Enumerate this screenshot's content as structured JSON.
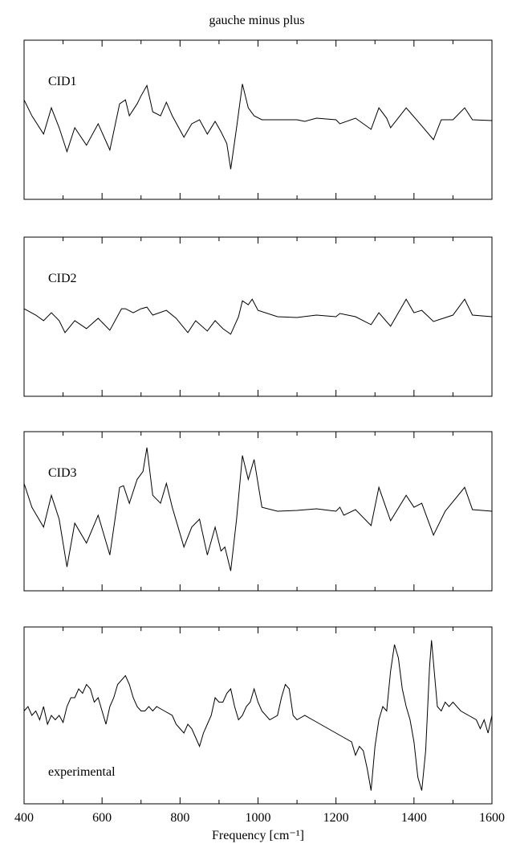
{
  "chart_data": [
    {
      "type": "line",
      "title": "gauche minus plus",
      "label": "CID1",
      "color": "#000000",
      "xlim": [
        400,
        1600
      ],
      "ylim": [
        -1,
        1
      ],
      "xticks": [
        400,
        600,
        800,
        1000,
        1200,
        1400,
        1600
      ],
      "xticks_minor": [
        500,
        700,
        900,
        1100,
        1300,
        1500
      ],
      "x": [
        400,
        420,
        450,
        470,
        490,
        510,
        530,
        560,
        590,
        620,
        645,
        660,
        670,
        690,
        700,
        715,
        730,
        750,
        765,
        780,
        810,
        830,
        850,
        870,
        890,
        905,
        920,
        930,
        945,
        960,
        975,
        990,
        1010,
        1100,
        1120,
        1150,
        1200,
        1210,
        1250,
        1290,
        1310,
        1330,
        1340,
        1380,
        1410,
        1450,
        1470,
        1500,
        1530,
        1550,
        1600
      ],
      "values": [
        0.25,
        0.05,
        -0.18,
        0.15,
        -0.1,
        -0.4,
        -0.1,
        -0.32,
        -0.05,
        -0.38,
        0.2,
        0.25,
        0.05,
        0.2,
        0.3,
        0.43,
        0.1,
        0.05,
        0.22,
        0.05,
        -0.22,
        -0.05,
        0,
        -0.18,
        -0.02,
        -0.15,
        -0.3,
        -0.62,
        -0.1,
        0.45,
        0.15,
        0.05,
        0,
        0,
        -0.02,
        0.02,
        0,
        -0.05,
        0.02,
        -0.12,
        0.15,
        0.02,
        -0.1,
        0.15,
        -0.02,
        -0.25,
        0,
        0,
        0.15,
        0,
        -0.01
      ]
    },
    {
      "type": "line",
      "label": "CID2",
      "color": "#000000",
      "xlim": [
        400,
        1600
      ],
      "ylim": [
        -1,
        1
      ],
      "xticks": [
        400,
        600,
        800,
        1000,
        1200,
        1400,
        1600
      ],
      "xticks_minor": [
        500,
        700,
        900,
        1100,
        1300,
        1500
      ],
      "x": [
        400,
        430,
        450,
        470,
        490,
        505,
        530,
        560,
        590,
        620,
        650,
        660,
        680,
        700,
        715,
        730,
        765,
        790,
        820,
        840,
        870,
        890,
        910,
        930,
        950,
        960,
        975,
        985,
        1000,
        1050,
        1100,
        1150,
        1200,
        1210,
        1250,
        1290,
        1310,
        1340,
        1380,
        1400,
        1420,
        1450,
        1500,
        1530,
        1550,
        1600
      ],
      "values": [
        0.1,
        0.02,
        -0.05,
        0.05,
        -0.05,
        -0.2,
        -0.05,
        -0.15,
        -0.02,
        -0.17,
        0.1,
        0.1,
        0.05,
        0.1,
        0.12,
        0.02,
        0.08,
        -0.02,
        -0.2,
        -0.05,
        -0.18,
        -0.05,
        -0.15,
        -0.22,
        0,
        0.2,
        0.15,
        0.22,
        0.08,
        0,
        -0.01,
        0.02,
        0,
        0.04,
        0,
        -0.1,
        0.05,
        -0.12,
        0.22,
        0.05,
        0.08,
        -0.06,
        0.02,
        0.22,
        0.02,
        0
      ]
    },
    {
      "type": "line",
      "label": "CID3",
      "color": "#000000",
      "xlim": [
        400,
        1600
      ],
      "ylim": [
        -1,
        1
      ],
      "xticks": [
        400,
        600,
        800,
        1000,
        1200,
        1400,
        1600
      ],
      "xticks_minor": [
        500,
        700,
        900,
        1100,
        1300,
        1500
      ],
      "x": [
        400,
        420,
        450,
        470,
        490,
        510,
        530,
        560,
        590,
        620,
        645,
        655,
        670,
        690,
        705,
        715,
        730,
        750,
        765,
        780,
        810,
        830,
        850,
        870,
        890,
        905,
        915,
        930,
        945,
        960,
        975,
        990,
        1010,
        1050,
        1100,
        1150,
        1200,
        1210,
        1220,
        1250,
        1290,
        1310,
        1340,
        1380,
        1400,
        1420,
        1450,
        1480,
        1530,
        1550,
        1600
      ],
      "values": [
        0.35,
        0.05,
        -0.2,
        0.2,
        -0.1,
        -0.7,
        -0.15,
        -0.4,
        -0.05,
        -0.55,
        0.3,
        0.32,
        0.1,
        0.4,
        0.5,
        0.8,
        0.2,
        0.1,
        0.35,
        0.05,
        -0.45,
        -0.2,
        -0.1,
        -0.55,
        -0.2,
        -0.5,
        -0.45,
        -0.75,
        -0.1,
        0.7,
        0.4,
        0.65,
        0.05,
        0,
        0.01,
        0.03,
        0,
        0.05,
        -0.05,
        0.02,
        -0.18,
        0.3,
        -0.12,
        0.2,
        0.05,
        0.1,
        -0.3,
        0,
        0.3,
        0.02,
        0
      ]
    },
    {
      "type": "line",
      "label": "experimental",
      "xlabel": "Frequency [cm⁻¹]",
      "color": "#000000",
      "xlim": [
        400,
        1600
      ],
      "ylim": [
        -1,
        1
      ],
      "xticks": [
        400,
        600,
        800,
        1000,
        1200,
        1400,
        1600
      ],
      "xticks_minor": [
        500,
        700,
        900,
        1100,
        1300,
        1500
      ],
      "x": [
        400,
        410,
        420,
        430,
        440,
        450,
        460,
        470,
        480,
        490,
        500,
        510,
        520,
        530,
        540,
        550,
        560,
        570,
        580,
        590,
        600,
        610,
        620,
        630,
        640,
        660,
        670,
        680,
        690,
        700,
        710,
        720,
        730,
        740,
        760,
        780,
        790,
        800,
        810,
        820,
        830,
        840,
        850,
        860,
        870,
        880,
        890,
        900,
        910,
        920,
        930,
        940,
        950,
        960,
        970,
        980,
        990,
        1000,
        1010,
        1030,
        1050,
        1060,
        1070,
        1080,
        1090,
        1100,
        1120,
        1140,
        1160,
        1180,
        1200,
        1220,
        1240,
        1250,
        1260,
        1270,
        1280,
        1290,
        1300,
        1310,
        1320,
        1330,
        1340,
        1350,
        1360,
        1370,
        1380,
        1390,
        1400,
        1410,
        1420,
        1430,
        1440,
        1445,
        1450,
        1460,
        1470,
        1480,
        1490,
        1500,
        1520,
        1540,
        1560,
        1570,
        1580,
        1590,
        1600
      ],
      "values": [
        0.05,
        0.1,
        0,
        0.05,
        -0.05,
        0.1,
        -0.1,
        0,
        -0.05,
        0,
        -0.08,
        0.1,
        0.2,
        0.2,
        0.3,
        0.25,
        0.35,
        0.3,
        0.15,
        0.2,
        0.05,
        -0.1,
        0.1,
        0.2,
        0.35,
        0.45,
        0.35,
        0.2,
        0.1,
        0.05,
        0.05,
        0.1,
        0.05,
        0.1,
        0.05,
        0,
        -0.1,
        -0.15,
        -0.2,
        -0.1,
        -0.15,
        -0.25,
        -0.35,
        -0.2,
        -0.1,
        0,
        0.2,
        0.15,
        0.15,
        0.25,
        0.3,
        0.1,
        -0.05,
        0,
        0.1,
        0.15,
        0.3,
        0.15,
        0.05,
        -0.05,
        0,
        0.2,
        0.35,
        0.3,
        0,
        -0.05,
        0,
        -0.05,
        -0.1,
        -0.15,
        -0.2,
        -0.25,
        -0.3,
        -0.45,
        -0.35,
        -0.4,
        -0.6,
        -0.85,
        -0.35,
        -0.05,
        0.1,
        0.05,
        0.5,
        0.8,
        0.65,
        0.3,
        0.1,
        -0.05,
        -0.3,
        -0.7,
        -0.85,
        -0.4,
        0.55,
        0.85,
        0.6,
        0.1,
        0.05,
        0.15,
        0.1,
        0.15,
        0.05,
        0,
        -0.05,
        -0.15,
        -0.05,
        -0.2,
        0
      ]
    }
  ]
}
